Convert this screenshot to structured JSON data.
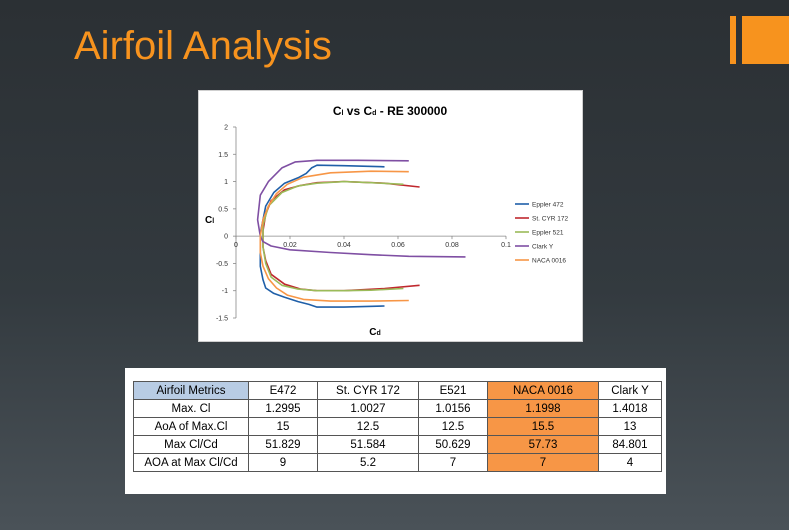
{
  "slide": {
    "title": "Airfoil Analysis",
    "accent_color": "#f7931e"
  },
  "chart_data": {
    "type": "line",
    "title_parts": [
      {
        "text": "C",
        "sub": "l"
      },
      {
        "text": " vs ",
        "sub": ""
      },
      {
        "text": "C",
        "sub": "d"
      },
      {
        "text": " - RE 300000",
        "sub": ""
      }
    ],
    "xlabel": {
      "text": "C",
      "sub": "d"
    },
    "ylabel": {
      "text": "C",
      "sub": "l"
    },
    "xlim": [
      0,
      0.1
    ],
    "ylim": [
      -1.5,
      2
    ],
    "x_ticks": [
      "0",
      "0.02",
      "0.04",
      "0.06",
      "0.08",
      "0.1"
    ],
    "y_ticks": [
      "2",
      "1.5",
      "1",
      "0.5",
      "0",
      "-0.5",
      "-1",
      "-1.5"
    ],
    "legend_position": "right",
    "grid": false,
    "series": [
      {
        "name": "Eppler 472",
        "color": "#1f5fa8",
        "x": [
          0.055,
          0.04,
          0.03,
          0.028,
          0.026,
          0.023,
          0.018,
          0.014,
          0.011,
          0.01,
          0.009,
          0.009,
          0.009,
          0.009,
          0.01,
          0.011,
          0.014,
          0.018,
          0.023,
          0.027,
          0.03,
          0.04,
          0.055
        ],
        "y": [
          1.27,
          1.29,
          1.3,
          1.25,
          1.15,
          1.07,
          0.97,
          0.8,
          0.55,
          0.3,
          0.05,
          -0.1,
          -0.3,
          -0.55,
          -0.8,
          -0.95,
          -1.05,
          -1.12,
          -1.2,
          -1.25,
          -1.3,
          -1.3,
          -1.28
        ]
      },
      {
        "name": "St. CYR 172",
        "color": "#c0282e",
        "x": [
          0.068,
          0.055,
          0.04,
          0.03,
          0.024,
          0.018,
          0.013,
          0.011,
          0.01,
          0.01,
          0.011,
          0.013,
          0.018,
          0.024,
          0.03,
          0.04,
          0.055,
          0.068
        ],
        "y": [
          0.9,
          0.97,
          1.0,
          0.98,
          0.93,
          0.85,
          0.65,
          0.4,
          0.1,
          -0.2,
          -0.45,
          -0.7,
          -0.88,
          -0.97,
          -1.0,
          -1.0,
          -0.96,
          -0.9
        ]
      },
      {
        "name": "Eppler 521",
        "color": "#9bbb59",
        "x": [
          0.062,
          0.05,
          0.04,
          0.03,
          0.023,
          0.017,
          0.012,
          0.01,
          0.01,
          0.011,
          0.013,
          0.017,
          0.023,
          0.03,
          0.04,
          0.05,
          0.062
        ],
        "y": [
          0.95,
          0.98,
          1.0,
          0.97,
          0.92,
          0.8,
          0.55,
          0.2,
          -0.2,
          -0.5,
          -0.75,
          -0.9,
          -0.97,
          -1.0,
          -1.0,
          -0.99,
          -0.96
        ]
      },
      {
        "name": "Clark Y",
        "color": "#7f4fa3",
        "x": [
          0.064,
          0.045,
          0.03,
          0.022,
          0.017,
          0.012,
          0.009,
          0.008,
          0.009,
          0.01,
          0.013,
          0.02,
          0.035,
          0.05,
          0.064,
          0.085
        ],
        "y": [
          1.38,
          1.39,
          1.39,
          1.36,
          1.25,
          1.0,
          0.75,
          0.3,
          0.0,
          -0.1,
          -0.18,
          -0.25,
          -0.3,
          -0.34,
          -0.37,
          -0.38
        ]
      },
      {
        "name": "NACA 0016",
        "color": "#f79646",
        "x": [
          0.064,
          0.05,
          0.035,
          0.025,
          0.019,
          0.015,
          0.012,
          0.01,
          0.009,
          0.009,
          0.01,
          0.012,
          0.015,
          0.019,
          0.025,
          0.035,
          0.05,
          0.064
        ],
        "y": [
          1.18,
          1.19,
          1.16,
          1.08,
          0.95,
          0.78,
          0.55,
          0.3,
          0.0,
          -0.3,
          -0.55,
          -0.78,
          -0.95,
          -1.08,
          -1.16,
          -1.19,
          -1.19,
          -1.18
        ]
      }
    ]
  },
  "table": {
    "headers": [
      "Airfoil Metrics",
      "E472",
      "St. CYR 172",
      "E521",
      "NACA 0016",
      "Clark Y"
    ],
    "rows": [
      [
        "Max. Cl",
        "1.2995",
        "1.0027",
        "1.0156",
        "1.1998",
        "1.4018"
      ],
      [
        "AoA of Max.Cl",
        "15",
        "12.5",
        "12.5",
        "15.5",
        "13"
      ],
      [
        "Max Cl/Cd",
        "51.829",
        "51.584",
        "50.629",
        "57.73",
        "84.801"
      ],
      [
        "AOA at Max Cl/Cd",
        "9",
        "5.2",
        "7",
        "7",
        "4"
      ]
    ],
    "highlight_column": 4,
    "highlight_color": "#f79646",
    "header_color": "#b8cce4"
  }
}
